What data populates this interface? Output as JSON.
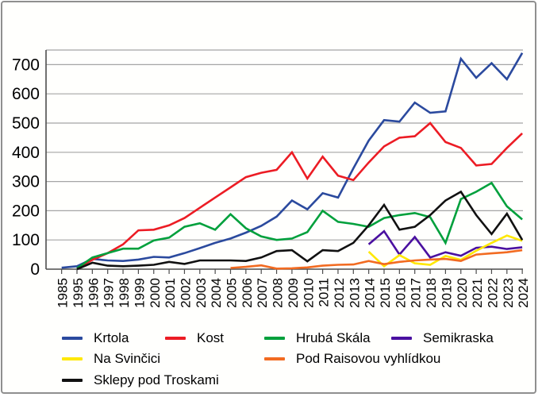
{
  "chart_data": {
    "type": "line",
    "title": "",
    "xlabel": "",
    "ylabel": "",
    "categories": [
      "1985",
      "1995",
      "1996",
      "1997",
      "1998",
      "1999",
      "2000",
      "2001",
      "2002",
      "2003",
      "2004",
      "2005",
      "2006",
      "2007",
      "2008",
      "2009",
      "2010",
      "2011",
      "2012",
      "2013",
      "2014",
      "2015",
      "2016",
      "2017",
      "2018",
      "2019",
      "2020",
      "2021",
      "2022",
      "2023",
      "2024"
    ],
    "yticks": [
      0,
      100,
      200,
      300,
      400,
      500,
      600,
      700
    ],
    "ylim": [
      0,
      750
    ],
    "grid": true,
    "legend_position": "bottom",
    "axis_color": "#4d4d4d",
    "grid_color": "#a5a5a5",
    "series": [
      {
        "name": "Krtola",
        "color": "#2b4a9e",
        "stroke_width": 2.6,
        "values": [
          5,
          10,
          35,
          30,
          28,
          33,
          42,
          40,
          55,
          72,
          90,
          105,
          125,
          148,
          180,
          235,
          205,
          260,
          245,
          345,
          440,
          510,
          505,
          570,
          535,
          540,
          720,
          655,
          705,
          650,
          740
        ]
      },
      {
        "name": "Kost",
        "color": "#ec1c24",
        "stroke_width": 2.6,
        "values": [
          null,
          3,
          32,
          55,
          85,
          133,
          135,
          150,
          175,
          210,
          245,
          280,
          315,
          330,
          340,
          400,
          310,
          385,
          320,
          305,
          365,
          420,
          450,
          455,
          500,
          435,
          415,
          355,
          360,
          415,
          465
        ]
      },
      {
        "name": "Hrubá Skála",
        "color": "#00a03c",
        "stroke_width": 2.6,
        "values": [
          null,
          3,
          40,
          55,
          70,
          70,
          98,
          108,
          145,
          157,
          135,
          188,
          140,
          112,
          100,
          105,
          127,
          200,
          162,
          155,
          145,
          175,
          185,
          192,
          178,
          90,
          240,
          265,
          295,
          215,
          170
        ]
      },
      {
        "name": "Semikraska",
        "color": "#4a10a0",
        "stroke_width": 2.6,
        "values": [
          null,
          null,
          null,
          null,
          null,
          null,
          null,
          null,
          null,
          null,
          null,
          null,
          null,
          null,
          null,
          null,
          null,
          null,
          null,
          null,
          85,
          130,
          50,
          110,
          40,
          58,
          46,
          73,
          77,
          69,
          75
        ]
      },
      {
        "name": "Na Svinčici",
        "color": "#ffe800",
        "stroke_width": 2.6,
        "values": [
          null,
          null,
          null,
          null,
          null,
          null,
          null,
          null,
          null,
          null,
          null,
          null,
          null,
          null,
          null,
          null,
          null,
          null,
          null,
          null,
          60,
          10,
          48,
          20,
          15,
          45,
          32,
          63,
          90,
          115,
          97
        ]
      },
      {
        "name": "Pod Raisovou vyhlídkou",
        "color": "#f26b21",
        "stroke_width": 2.6,
        "values": [
          null,
          null,
          null,
          null,
          null,
          null,
          null,
          null,
          null,
          null,
          null,
          4,
          8,
          13,
          2,
          3,
          6,
          12,
          15,
          16,
          28,
          17,
          25,
          30,
          33,
          35,
          28,
          50,
          54,
          58,
          65
        ]
      },
      {
        "name": "Sklepy pod Troskami",
        "color": "#111111",
        "stroke_width": 2.6,
        "values": [
          null,
          0,
          22,
          12,
          10,
          12,
          15,
          25,
          18,
          30,
          30,
          30,
          28,
          40,
          62,
          65,
          27,
          65,
          62,
          90,
          150,
          220,
          135,
          145,
          185,
          235,
          265,
          185,
          120,
          190,
          100
        ]
      }
    ],
    "legend_rows": [
      [
        "Krtola",
        "Kost",
        "Hrubá Skála",
        "Semikraska"
      ],
      [
        "Na Svinčici",
        "Pod Raisovou vyhlídkou"
      ],
      [
        "Sklepy pod Troskami"
      ]
    ]
  }
}
